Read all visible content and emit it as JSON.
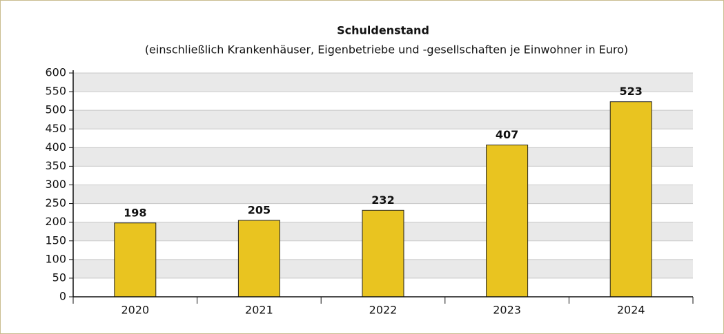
{
  "chart_data": {
    "type": "bar",
    "title": "Schuldenstand",
    "subtitle": "(einschließlich Krankenhäuser, Eigenbetriebe und -gesellschaften je Einwohner in Euro)",
    "categories": [
      "2020",
      "2021",
      "2022",
      "2023",
      "2024"
    ],
    "values": [
      198,
      205,
      232,
      407,
      523
    ],
    "color": "#e9c420",
    "ylim": [
      0,
      600
    ],
    "yticks": [
      0,
      50,
      100,
      150,
      200,
      250,
      300,
      350,
      400,
      450,
      500,
      550,
      600
    ],
    "grid": true
  }
}
